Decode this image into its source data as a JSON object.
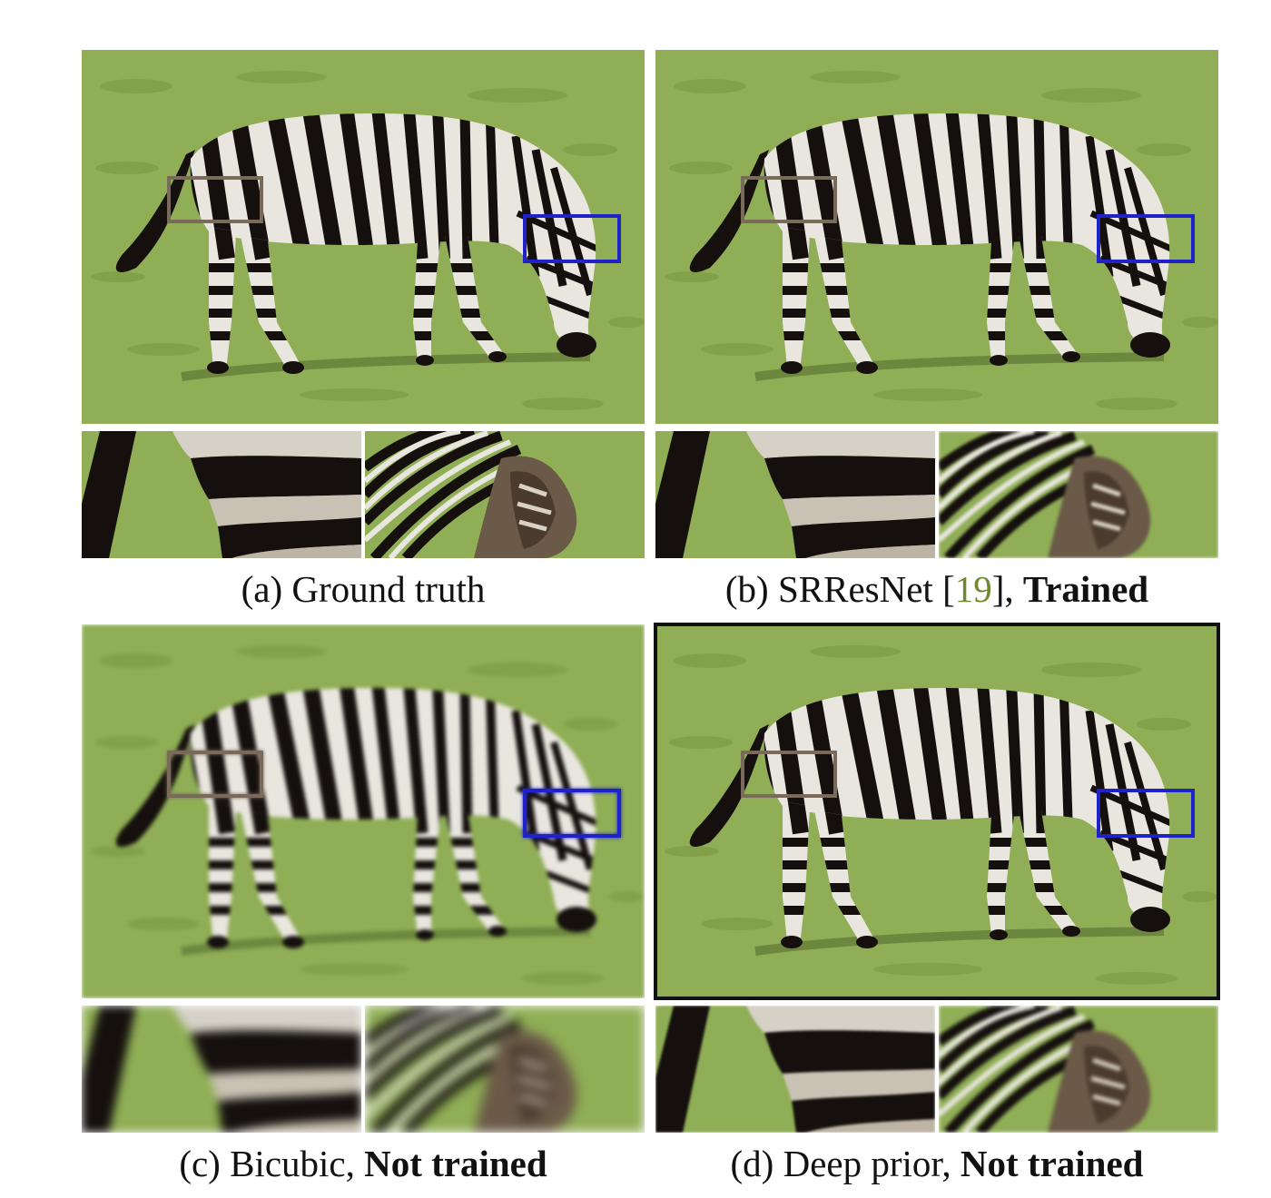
{
  "colors": {
    "grass": "#8fae55",
    "grass_dark": "#6f8e3f",
    "stripe_dark": "#15100e",
    "stripe_light": "#e9e6df",
    "box_brown": "#7a6a5a",
    "box_blue": "#1f22c8",
    "citation": "#6f8a2e"
  },
  "panels": [
    {
      "id": "a",
      "label": "(a)",
      "method": "Ground truth",
      "citation": "",
      "citation_open": "",
      "citation_close": "",
      "status": "",
      "sharpness": "sharp",
      "highlighted": false
    },
    {
      "id": "b",
      "label": "(b)",
      "method": "SRResNet",
      "citation_open": " [",
      "citation": "19",
      "citation_close": "], ",
      "status": "Trained",
      "sharpness": "sharp",
      "highlighted": false
    },
    {
      "id": "c",
      "label": "(c)",
      "method": "Bicubic, ",
      "citation": "",
      "citation_open": "",
      "citation_close": "",
      "status": "Not trained",
      "sharpness": "blurry",
      "highlighted": false
    },
    {
      "id": "d",
      "label": "(d)",
      "method": "Deep prior, ",
      "citation": "",
      "citation_open": "",
      "citation_close": "",
      "status": "Not trained",
      "sharpness": "sharp",
      "highlighted": true
    }
  ]
}
